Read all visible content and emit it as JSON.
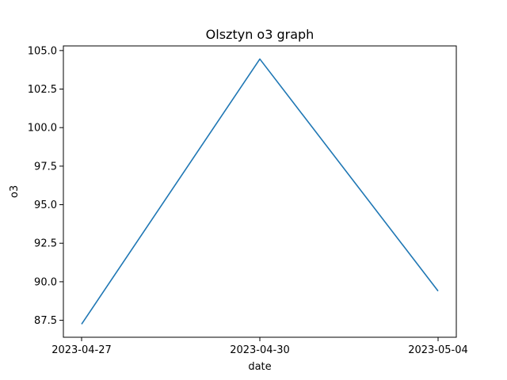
{
  "chart_data": {
    "type": "line",
    "title": "Olsztyn o3 graph",
    "xlabel": "date",
    "ylabel": "o3",
    "x_type": "category",
    "categories": [
      "2023-04-27",
      "2023-04-30",
      "2023-05-04"
    ],
    "series": [
      {
        "values": [
          87.25,
          104.45,
          89.4
        ],
        "color": "#1f77b4"
      }
    ],
    "ylim": [
      86.4,
      105.3
    ],
    "yticks": [
      87.5,
      90.0,
      92.5,
      95.0,
      97.5,
      100.0,
      102.5,
      105.0
    ],
    "ytick_labels": [
      "87.5",
      "90.0",
      "92.5",
      "95.0",
      "97.5",
      "100.0",
      "102.5",
      "105.0"
    ],
    "grid": false,
    "legend": "none"
  }
}
